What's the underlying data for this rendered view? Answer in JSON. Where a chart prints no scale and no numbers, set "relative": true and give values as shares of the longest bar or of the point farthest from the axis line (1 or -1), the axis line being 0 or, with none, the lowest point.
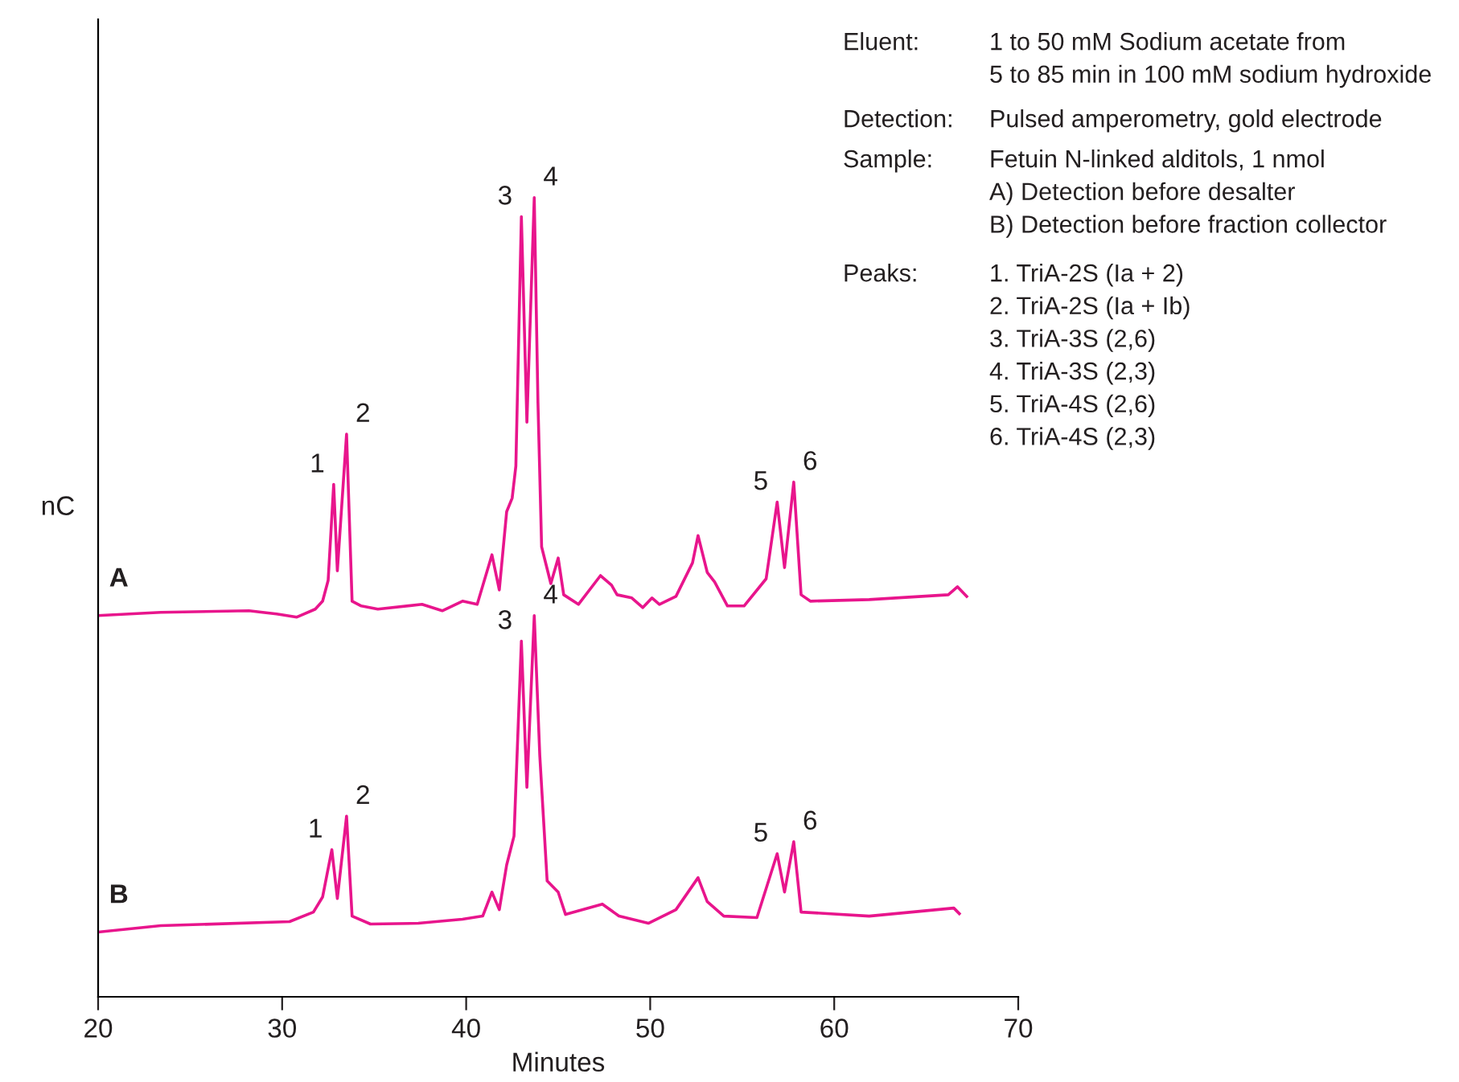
{
  "chart_data": {
    "type": "line",
    "relative": true,
    "xlabel": "Minutes",
    "ylabel": "nC",
    "xlim": [
      20,
      70
    ],
    "xticks": [
      20,
      30,
      40,
      50,
      60,
      70
    ],
    "grid": false,
    "legend": false,
    "marker": "none",
    "line_style": "solid",
    "series": [
      {
        "name": "A",
        "color": "#e8158c",
        "x": [
          20,
          23.4,
          28.2,
          29.7,
          30.8,
          31.8,
          32.2,
          32.5,
          32.8,
          33.0,
          33.5,
          33.8,
          34.3,
          35.2,
          37.6,
          38.7,
          39.8,
          40.6,
          41.4,
          41.8,
          42.2,
          42.5,
          42.7,
          43.0,
          43.3,
          43.7,
          43.9,
          44.1,
          44.6,
          45.0,
          45.3,
          46.1,
          47.3,
          47.9,
          48.2,
          49.0,
          49.6,
          50.1,
          50.5,
          51.4,
          52.3,
          52.6,
          53.1,
          53.5,
          54.2,
          55.1,
          56.3,
          56.9,
          57.3,
          57.8,
          58.2,
          58.7,
          61.9,
          66.2,
          66.7,
          67.2
        ],
        "values": [
          0.477,
          0.481,
          0.483,
          0.479,
          0.475,
          0.485,
          0.495,
          0.521,
          0.641,
          0.533,
          0.704,
          0.495,
          0.489,
          0.485,
          0.491,
          0.483,
          0.495,
          0.491,
          0.553,
          0.509,
          0.607,
          0.624,
          0.664,
          0.976,
          0.719,
          1.0,
          0.744,
          0.563,
          0.517,
          0.549,
          0.503,
          0.491,
          0.527,
          0.515,
          0.503,
          0.499,
          0.487,
          0.499,
          0.491,
          0.501,
          0.543,
          0.577,
          0.531,
          0.519,
          0.489,
          0.489,
          0.523,
          0.619,
          0.537,
          0.644,
          0.503,
          0.495,
          0.497,
          0.503,
          0.513,
          0.501
        ]
      },
      {
        "name": "B",
        "color": "#e8158c",
        "x": [
          20,
          23.4,
          30.4,
          31.7,
          32.2,
          32.7,
          33.0,
          33.5,
          33.8,
          34.8,
          37.4,
          39.8,
          40.9,
          41.4,
          41.8,
          42.2,
          42.6,
          43.0,
          43.3,
          43.7,
          44.0,
          44.4,
          45.0,
          45.4,
          47.4,
          48.3,
          49.9,
          51.4,
          52.6,
          53.1,
          54.0,
          55.8,
          56.9,
          57.3,
          57.8,
          58.2,
          61.9,
          66.5,
          66.8
        ],
        "values": [
          0.081,
          0.089,
          0.094,
          0.106,
          0.125,
          0.184,
          0.123,
          0.226,
          0.101,
          0.091,
          0.092,
          0.097,
          0.101,
          0.131,
          0.109,
          0.165,
          0.201,
          0.445,
          0.262,
          0.477,
          0.302,
          0.145,
          0.131,
          0.103,
          0.116,
          0.101,
          0.092,
          0.109,
          0.149,
          0.119,
          0.101,
          0.099,
          0.179,
          0.131,
          0.194,
          0.106,
          0.101,
          0.111,
          0.104
        ]
      }
    ],
    "annotations": [
      {
        "text": "1",
        "x": 32.8,
        "y": 0.641
      },
      {
        "text": "2",
        "x": 33.5,
        "y": 0.704
      },
      {
        "text": "3",
        "x": 43.0,
        "y": 0.976
      },
      {
        "text": "4",
        "x": 43.7,
        "y": 1.0
      },
      {
        "text": "5",
        "x": 56.9,
        "y": 0.619
      },
      {
        "text": "6",
        "x": 57.8,
        "y": 0.644
      },
      {
        "text": "1",
        "x": 32.7,
        "y": 0.184
      },
      {
        "text": "2",
        "x": 33.5,
        "y": 0.226
      },
      {
        "text": "3",
        "x": 43.0,
        "y": 0.445
      },
      {
        "text": "4",
        "x": 43.7,
        "y": 0.477
      },
      {
        "text": "5",
        "x": 56.9,
        "y": 0.179
      },
      {
        "text": "6",
        "x": 57.8,
        "y": 0.194
      },
      "Eluent:\t1 to 50 mM Sodium acetate from\n5 to 85 min in 100 mM sodium hydroxide",
      "Detection:\tPulsed amperometry, gold electrode",
      "Sample:\tFetuin N-linked alditols, 1 nmol\nA) Detection before desalter\nB) Detection before fraction collector",
      "Peaks:\t1. TriA-2S (Ia + 2)\n2. TriA-2S (Ia + Ib)\n3. TriA-3S (2,6)\n4. TriA-3S (2,3)\n5. TriA-4S (2,6)\n6. TriA-4S (2,3)"
    ]
  }
}
